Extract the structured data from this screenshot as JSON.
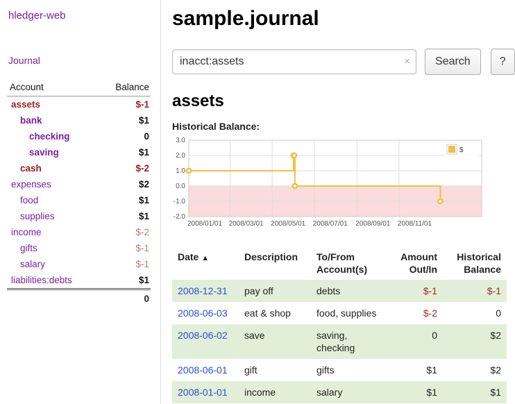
{
  "app": {
    "title": "hledger-web",
    "nav_journal": "Journal"
  },
  "sidebar": {
    "columns": {
      "account": "Account",
      "balance": "Balance"
    },
    "accounts": [
      {
        "name": "assets",
        "indent": 0,
        "balance": "$-1",
        "name_class": "bold maroon",
        "bal_class": "maroon"
      },
      {
        "name": "bank",
        "indent": 1,
        "balance": "$1",
        "name_class": "bold",
        "bal_class": ""
      },
      {
        "name": "checking",
        "indent": 2,
        "balance": "0",
        "name_class": "bold",
        "bal_class": ""
      },
      {
        "name": "saving",
        "indent": 2,
        "balance": "$1",
        "name_class": "bold",
        "bal_class": ""
      },
      {
        "name": "cash",
        "indent": 1,
        "balance": "$-2",
        "name_class": "bold maroon",
        "bal_class": "maroon"
      },
      {
        "name": "expenses",
        "indent": 0,
        "balance": "$2",
        "name_class": "",
        "bal_class": ""
      },
      {
        "name": "food",
        "indent": 1,
        "balance": "$1",
        "name_class": "",
        "bal_class": ""
      },
      {
        "name": "supplies",
        "indent": 1,
        "balance": "$1",
        "name_class": "",
        "bal_class": ""
      },
      {
        "name": "income",
        "indent": 0,
        "balance": "$-2",
        "name_class": "",
        "bal_class": "rose"
      },
      {
        "name": "gifts",
        "indent": 1,
        "balance": "$-1",
        "name_class": "",
        "bal_class": "rose"
      },
      {
        "name": "salary",
        "indent": 1,
        "balance": "$-1",
        "name_class": "",
        "bal_class": "rose"
      },
      {
        "name": "liabilities:debts",
        "indent": 0,
        "balance": "$1",
        "name_class": "",
        "bal_class": ""
      }
    ],
    "total": "0"
  },
  "main": {
    "title": "sample.journal",
    "search": {
      "value": "inacct:assets",
      "clear": "×",
      "button": "Search",
      "help": "?"
    },
    "account_heading": "assets",
    "chart_label": "Historical Balance:"
  },
  "chart_data": {
    "type": "line",
    "step": true,
    "title": "Historical Balance",
    "series": [
      {
        "name": "$",
        "x": [
          "2008-01-01",
          "2008-06-01",
          "2008-06-02",
          "2008-06-03",
          "2008-12-31"
        ],
        "y": [
          1,
          2,
          2,
          0,
          -1
        ]
      }
    ],
    "x_range": [
      "2008-01-01",
      "2009-03-01"
    ],
    "ylim": [
      -2,
      3
    ],
    "yticks": [
      "3.0",
      "2.0",
      "1.0",
      "0.0",
      "-1.0",
      "-2.0"
    ],
    "xticks": [
      "2008/01/01",
      "2008/03/01",
      "2008/05/01",
      "2008/07/01",
      "2008/09/01",
      "2008/11/01"
    ],
    "xtick_dates": [
      "2008-01-01",
      "2008-03-01",
      "2008-05-01",
      "2008-07-01",
      "2008-09-01",
      "2008-11-01"
    ],
    "legend": {
      "label": "$",
      "position": "top-right"
    },
    "grid": true,
    "colors": {
      "line": "#edc240",
      "marking_below_zero": "#fbdcdc",
      "grid": "#dddddd",
      "border": "#cccccc",
      "tick_text": "#545454"
    }
  },
  "register": {
    "headers": {
      "date": "Date",
      "sort_icon": "▲",
      "description": "Description",
      "account": "To/From Account(s)",
      "amount": "Amount Out/In",
      "balance": "Historical Balance"
    },
    "rows": [
      {
        "date": "2008-12-31",
        "description": "pay off",
        "accounts": "debts",
        "amount": "$-1",
        "amount_neg": true,
        "balance": "$-1",
        "balance_neg": true,
        "shaded": true
      },
      {
        "date": "2008-06-03",
        "description": "eat & shop",
        "accounts": "food, supplies",
        "amount": "$-2",
        "amount_neg": true,
        "balance": "0",
        "balance_neg": false,
        "shaded": false
      },
      {
        "date": "2008-06-02",
        "description": "save",
        "accounts": "saving, checking",
        "amount": "0",
        "amount_neg": false,
        "balance": "$2",
        "balance_neg": false,
        "shaded": true
      },
      {
        "date": "2008-06-01",
        "description": "gift",
        "accounts": "gifts",
        "amount": "$1",
        "amount_neg": false,
        "balance": "$2",
        "balance_neg": false,
        "shaded": false
      },
      {
        "date": "2008-01-01",
        "description": "income",
        "accounts": "salary",
        "amount": "$1",
        "amount_neg": false,
        "balance": "$1",
        "balance_neg": false,
        "shaded": true
      }
    ]
  }
}
